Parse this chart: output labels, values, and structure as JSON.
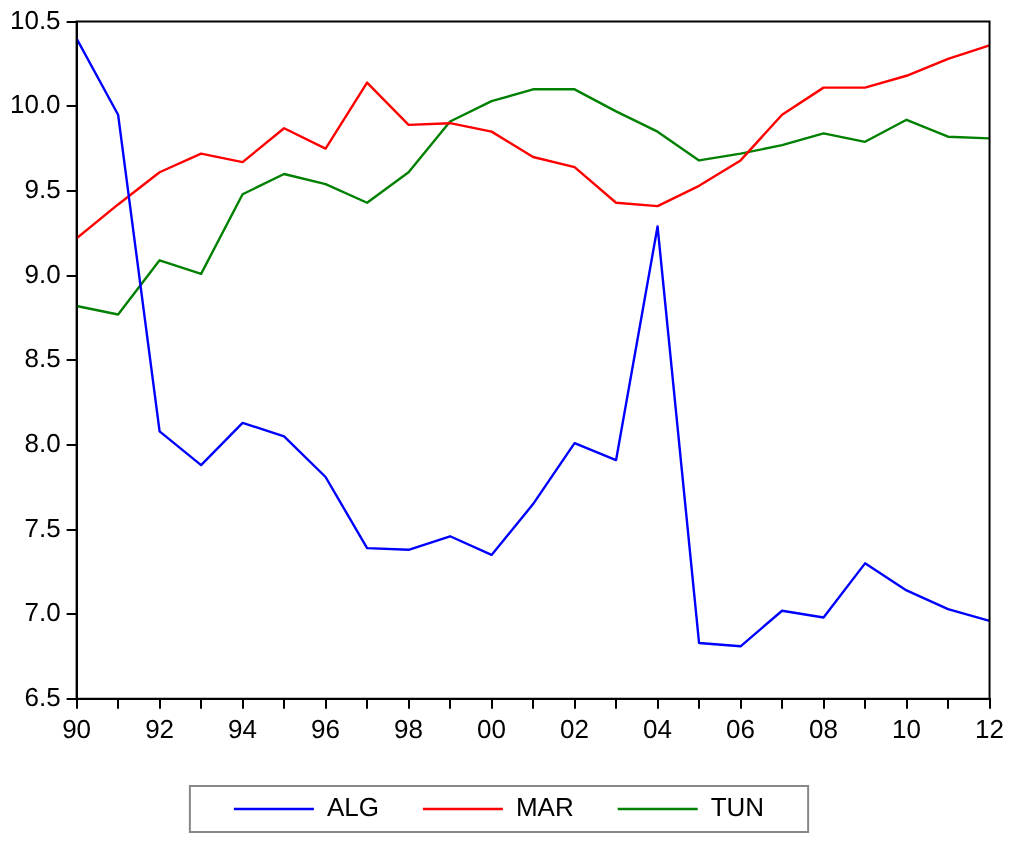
{
  "chart_data": {
    "type": "line",
    "x": [
      1990,
      1991,
      1992,
      1993,
      1994,
      1995,
      1996,
      1997,
      1998,
      1999,
      2000,
      2001,
      2002,
      2003,
      2004,
      2005,
      2006,
      2007,
      2008,
      2009,
      2010,
      2011,
      2012
    ],
    "series": [
      {
        "name": "ALG",
        "color": "#0000ff",
        "values": [
          10.4,
          9.95,
          8.08,
          7.88,
          8.13,
          8.05,
          7.81,
          7.39,
          7.38,
          7.46,
          7.35,
          7.65,
          8.01,
          7.91,
          9.29,
          6.83,
          6.81,
          7.02,
          6.98,
          7.3,
          7.14,
          7.03,
          6.96
        ]
      },
      {
        "name": "MAR",
        "color": "#ff0000",
        "values": [
          9.22,
          9.42,
          9.61,
          9.72,
          9.67,
          9.87,
          9.75,
          10.14,
          9.89,
          9.9,
          9.85,
          9.7,
          9.64,
          9.43,
          9.41,
          9.53,
          9.68,
          9.95,
          10.11,
          10.11,
          10.18,
          10.28,
          10.36
        ]
      },
      {
        "name": "TUN",
        "color": "#008000",
        "values": [
          8.82,
          8.77,
          9.09,
          9.01,
          9.48,
          9.6,
          9.54,
          9.43,
          9.61,
          9.91,
          10.03,
          10.1,
          10.1,
          9.97,
          9.85,
          9.68,
          9.72,
          9.77,
          9.84,
          9.79,
          9.92,
          9.82,
          9.81
        ]
      }
    ],
    "xlim": [
      1990,
      2012
    ],
    "xticks": [
      {
        "value": 1990,
        "label": "90"
      },
      {
        "value": 1991,
        "label": null
      },
      {
        "value": 1992,
        "label": "92"
      },
      {
        "value": 1993,
        "label": null
      },
      {
        "value": 1994,
        "label": "94"
      },
      {
        "value": 1995,
        "label": null
      },
      {
        "value": 1996,
        "label": "96"
      },
      {
        "value": 1997,
        "label": null
      },
      {
        "value": 1998,
        "label": "98"
      },
      {
        "value": 1999,
        "label": null
      },
      {
        "value": 2000,
        "label": "00"
      },
      {
        "value": 2001,
        "label": null
      },
      {
        "value": 2002,
        "label": "02"
      },
      {
        "value": 2003,
        "label": null
      },
      {
        "value": 2004,
        "label": "04"
      },
      {
        "value": 2005,
        "label": null
      },
      {
        "value": 2006,
        "label": "06"
      },
      {
        "value": 2007,
        "label": null
      },
      {
        "value": 2008,
        "label": "08"
      },
      {
        "value": 2009,
        "label": null
      },
      {
        "value": 2010,
        "label": "10"
      },
      {
        "value": 2011,
        "label": null
      },
      {
        "value": 2012,
        "label": "12"
      }
    ],
    "ylim": [
      6.5,
      10.5
    ],
    "yticks": [
      {
        "value": 6.5,
        "label": "6.5"
      },
      {
        "value": 7,
        "label": "7.0"
      },
      {
        "value": 7.5,
        "label": "7.5"
      },
      {
        "value": 8,
        "label": "8.0"
      },
      {
        "value": 8.5,
        "label": "8.5"
      },
      {
        "value": 9,
        "label": "9.0"
      },
      {
        "value": 9.5,
        "label": "9.5"
      },
      {
        "value": 10,
        "label": "10.0"
      },
      {
        "value": 10.5,
        "label": "10.5"
      }
    ],
    "grid": false,
    "legend": "bottom",
    "marker": "none",
    "line_style": "solid"
  }
}
